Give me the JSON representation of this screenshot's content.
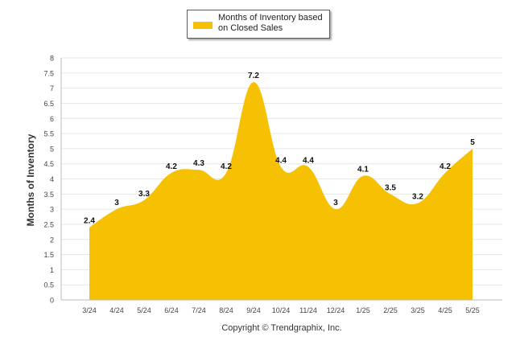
{
  "colors": {
    "fill": "#F6C103",
    "grid": "#e6e6e6",
    "axis": "#bbbbbb",
    "tick_text": "#444444",
    "label_text": "#111111"
  },
  "legend": {
    "label": "Months of Inventory based on Closed Sales"
  },
  "y_axis_title": "Months of Inventory",
  "copyright": "Copyright © Trendgraphix, Inc.",
  "chart_data": {
    "type": "area",
    "ylabel": "Months of Inventory",
    "xlabel": "",
    "ylim": [
      0,
      8
    ],
    "yticks": [
      "0",
      "0.5",
      "1",
      "1.5",
      "2",
      "2.5",
      "3",
      "3.5",
      "4",
      "4.5",
      "5",
      "5.5",
      "6",
      "6.5",
      "7",
      "7.5",
      "8"
    ],
    "grid": true,
    "legend_position": "top-center",
    "categories": [
      "3/24",
      "4/24",
      "5/24",
      "6/24",
      "7/24",
      "8/24",
      "9/24",
      "10/24",
      "11/24",
      "12/24",
      "1/25",
      "2/25",
      "3/25",
      "4/25",
      "5/25"
    ],
    "series": [
      {
        "name": "Months of Inventory based on Closed Sales",
        "values": [
          2.4,
          3,
          3.3,
          4.2,
          4.3,
          4.2,
          7.2,
          4.4,
          4.4,
          3,
          4.1,
          3.5,
          3.2,
          4.2,
          5
        ]
      }
    ]
  }
}
